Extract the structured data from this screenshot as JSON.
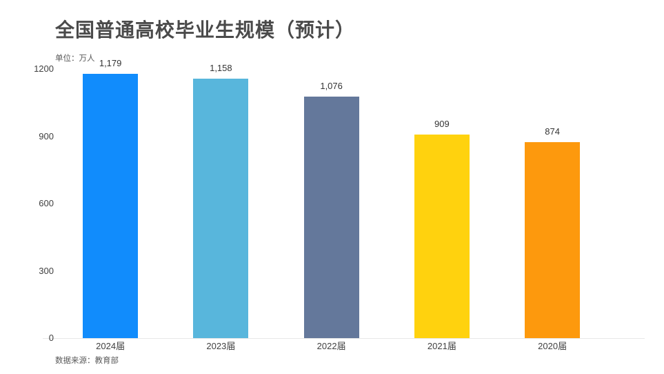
{
  "title": "全国普通高校毕业生规模（预计）",
  "unit_label": "单位：万人",
  "source": "数据来源：教育部",
  "chart_data": {
    "type": "bar",
    "title": "全国普通高校毕业生规模（预计）",
    "ylabel": "单位：万人",
    "xlabel": "",
    "categories": [
      "2024届",
      "2023届",
      "2022届",
      "2021届",
      "2020届"
    ],
    "values": [
      1179,
      1158,
      1076,
      909,
      874
    ],
    "value_labels": [
      "1,179",
      "1,158",
      "1,076",
      "909",
      "874"
    ],
    "bar_colors": [
      "#118cfc",
      "#58b6dc",
      "#64789b",
      "#ffd20e",
      "#fd990d"
    ],
    "yticks": [
      0,
      300,
      600,
      900,
      1200
    ],
    "ylim": [
      0,
      1200
    ],
    "grid": false,
    "legend_position": "none",
    "source": "数据来源：教育部"
  },
  "colors": {
    "background": "#ffffff",
    "title_text": "#4a4a4a",
    "axis_text": "#404040",
    "value_text": "#333333",
    "muted_text": "#595959",
    "baseline": "#e7e7e7"
  }
}
